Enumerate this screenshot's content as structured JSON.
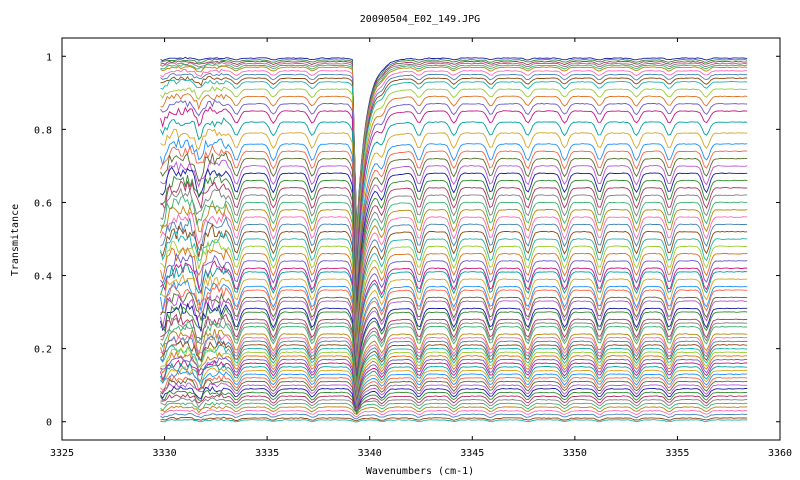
{
  "chart_data": {
    "type": "line",
    "title": "20090504_E02_149.JPG",
    "xlabel": "Wavenumbers (cm-1)",
    "ylabel": "Transmitance",
    "xlim": [
      3325,
      3360
    ],
    "ylim": [
      -0.05,
      1.05
    ],
    "x_ticks": [
      3325,
      3330,
      3335,
      3340,
      3345,
      3350,
      3355,
      3360
    ],
    "x_tick_labels": [
      "3325",
      "3330",
      "3335",
      "3340",
      "3345",
      "3350",
      "3355",
      "3360"
    ],
    "y_ticks": [
      0,
      0.2,
      0.4,
      0.6,
      0.8,
      1
    ],
    "y_tick_labels": [
      "0",
      "0.2",
      "0.4",
      "0.6",
      "0.8",
      "1"
    ],
    "x_data_range": [
      3329.8,
      3358.4
    ],
    "absorption_lines": [
      3329.9,
      3331.7,
      3333.5,
      3335.3,
      3337.2,
      3339.3,
      3340.6,
      3342.4,
      3344.1,
      3345.9,
      3347.7,
      3349.5,
      3351.2,
      3353.0,
      3354.6,
      3356.4
    ],
    "series_baseline_levels": [
      0.995,
      0.99,
      0.985,
      0.98,
      0.975,
      0.97,
      0.96,
      0.95,
      0.94,
      0.93,
      0.91,
      0.89,
      0.87,
      0.85,
      0.82,
      0.79,
      0.76,
      0.74,
      0.72,
      0.7,
      0.68,
      0.66,
      0.64,
      0.62,
      0.6,
      0.58,
      0.56,
      0.54,
      0.52,
      0.5,
      0.48,
      0.46,
      0.44,
      0.42,
      0.41,
      0.39,
      0.37,
      0.36,
      0.34,
      0.33,
      0.31,
      0.3,
      0.28,
      0.27,
      0.26,
      0.24,
      0.23,
      0.22,
      0.21,
      0.2,
      0.19,
      0.18,
      0.17,
      0.16,
      0.15,
      0.14,
      0.13,
      0.12,
      0.11,
      0.1,
      0.09,
      0.08,
      0.07,
      0.06,
      0.05,
      0.04,
      0.03,
      0.02,
      0.01,
      0.005
    ],
    "series_colors": [
      "#1a1aa8",
      "#2e8b2e",
      "#b03060",
      "#7f7f7f",
      "#3cb371",
      "#b8860b",
      "#ff69b4",
      "#4682b4",
      "#8b4513",
      "#20b2aa",
      "#9acd32",
      "#e07020",
      "#6a5acd",
      "#c71585",
      "#00a0a0",
      "#daa520",
      "#1e90ff",
      "#ff6347",
      "#556b2f",
      "#ba55d3"
    ],
    "grid": false,
    "legend": "none"
  }
}
